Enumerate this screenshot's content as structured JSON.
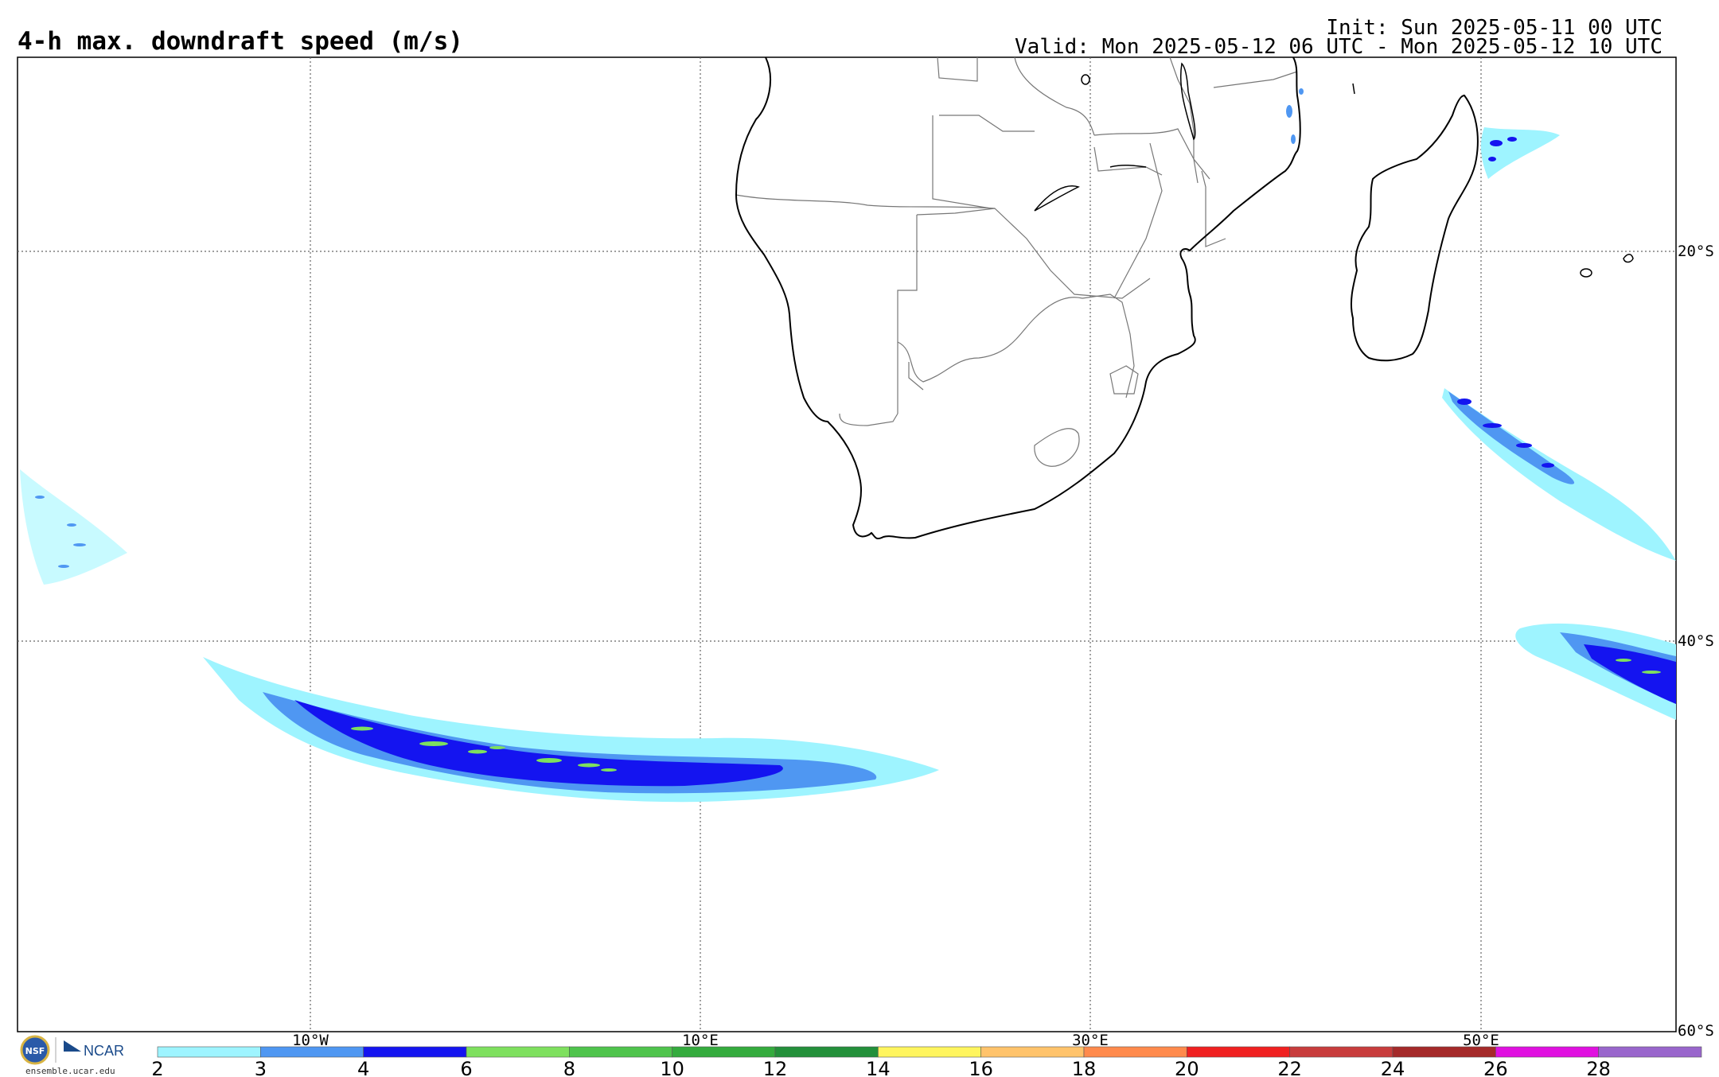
{
  "header": {
    "title": "4-h max. downdraft speed (m/s)",
    "init": "Init: Sun 2025-05-11 00 UTC",
    "valid": "Valid: Mon 2025-05-12 06 UTC - Mon 2025-05-12 10 UTC"
  },
  "map": {
    "lon_labels": [
      "10°W",
      "10°E",
      "30°E",
      "50°E"
    ],
    "lat_labels": [
      "20°S",
      "40°S",
      "60°S"
    ],
    "features": [
      "africa-coastline",
      "madagascar",
      "country-borders"
    ],
    "colors": {
      "land_outline": "#000000",
      "borders": "#777777",
      "grid": "#666666"
    }
  },
  "colorbar": {
    "labels": [
      "2",
      "3",
      "4",
      "6",
      "8",
      "10",
      "12",
      "14",
      "16",
      "18",
      "20",
      "22",
      "24",
      "26",
      "28"
    ],
    "colors": [
      "#9ef4ff",
      "#4f97f2",
      "#1414f0",
      "#7ee05e",
      "#4fc44c",
      "#34ab3d",
      "#23903a",
      "#fff55e",
      "#ffc36b",
      "#ff8a4c",
      "#f02020",
      "#c83c3c",
      "#a52a2a",
      "#e010e0",
      "#9966cc"
    ]
  },
  "logo": {
    "org1": "NSF",
    "org2": "NCAR",
    "site": "ensemble.ucar.edu"
  }
}
